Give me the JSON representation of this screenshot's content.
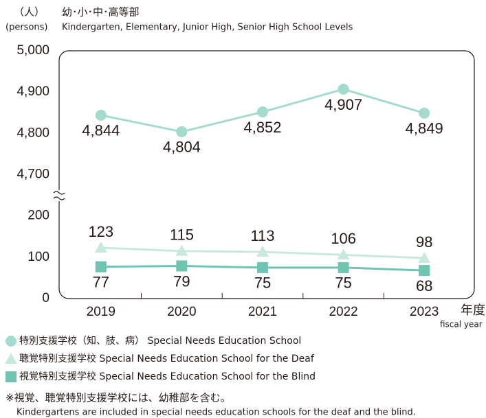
{
  "chart_data": {
    "type": "line",
    "y_unit": "（人）",
    "title": "幼･小･中･高等部",
    "y_unit_en": "(persons)",
    "subtitle": "Kindergarten, Elementary, Junior High, Senior High School Levels",
    "x_label": "年度",
    "x_label_en": "fiscal year",
    "categories": [
      "2019",
      "2020",
      "2021",
      "2022",
      "2023"
    ],
    "ylim": [
      0,
      5000
    ],
    "y_break": [
      250,
      4650
    ],
    "yticks": [
      0,
      100,
      200,
      {
        "value": 4700,
        "label": "4,700"
      },
      {
        "value": 4800,
        "label": "4,800"
      },
      {
        "value": 4900,
        "label": "4,900"
      },
      {
        "value": 5000,
        "label": "5,000"
      }
    ],
    "series": [
      {
        "name": "特別支援学校（知、肢、病） Special Needs Education School",
        "color": "#a3dbce",
        "marker": "circle",
        "label_side": "below",
        "values": [
          4844,
          4804,
          4852,
          4907,
          4849
        ],
        "value_labels": [
          "4,844",
          "4,804",
          "4,852",
          "4,907",
          "4,849"
        ]
      },
      {
        "name": "聴覚特別支援学校 Special Needs Education School for the Deaf",
        "color": "#c9e9df",
        "marker": "triangle",
        "label_side": "above",
        "values": [
          123,
          115,
          113,
          106,
          98
        ]
      },
      {
        "name": "視覚特別支援学校 Special Needs Education School for the Blind",
        "color": "#6fc5b1",
        "marker": "square",
        "label_side": "below",
        "values": [
          77,
          79,
          75,
          75,
          68
        ]
      }
    ],
    "notes": [
      "※視覚、聴覚特別支援学校には、幼稚部を含む。",
      "Kindergartens are included in special needs education schools for the deaf and the blind."
    ]
  }
}
